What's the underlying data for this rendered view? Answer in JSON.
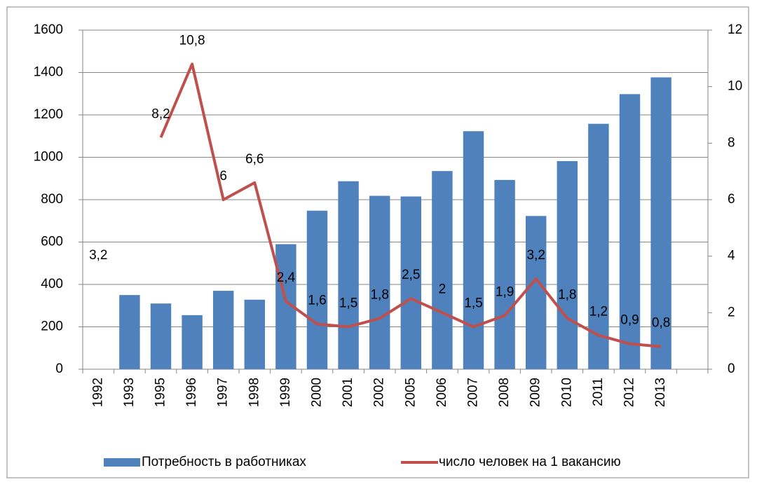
{
  "chart_data": {
    "type": "bar_line",
    "categories": [
      "1992",
      "1993",
      "1995",
      "1996",
      "1997",
      "1998",
      "1999",
      "2000",
      "2001",
      "2002",
      "2005",
      "2006",
      "2007",
      "2008",
      "2009",
      "2010",
      "2011",
      "2012",
      "2013",
      null
    ],
    "series": [
      {
        "name": "Потребность в работниках",
        "type": "bar",
        "color": "#4f81bd",
        "axis": "y",
        "values": [
          null,
          350,
          310,
          255,
          370,
          328,
          590,
          748,
          887,
          818,
          815,
          935,
          1123,
          893,
          723,
          982,
          1158,
          1298,
          1377,
          null
        ]
      },
      {
        "name": "число человек на 1 вакансию",
        "type": "line",
        "color": "#c0504d",
        "axis": "y2",
        "values": [
          3.2,
          null,
          8.2,
          10.8,
          6,
          6.6,
          2.4,
          1.6,
          1.5,
          1.8,
          2.5,
          2,
          1.5,
          1.9,
          3.2,
          1.8,
          1.2,
          0.9,
          0.8,
          null
        ],
        "value_labels": [
          "3,2",
          null,
          "8,2",
          "10,8",
          "6",
          "6,6",
          "2,4",
          "1,6",
          "1,5",
          "1,8",
          "2,5",
          "2",
          "1,5",
          "1,9",
          "3,2",
          "1,8",
          "1,2",
          "0,9",
          "0,8",
          null
        ]
      }
    ],
    "ylim": [
      0,
      1600
    ],
    "yticks": [
      0,
      200,
      400,
      600,
      800,
      1000,
      1200,
      1400,
      1600
    ],
    "y2lim": [
      0,
      12
    ],
    "y2ticks": [
      0,
      2,
      4,
      6,
      8,
      10,
      12
    ],
    "grid": true,
    "legend": "bottom"
  }
}
